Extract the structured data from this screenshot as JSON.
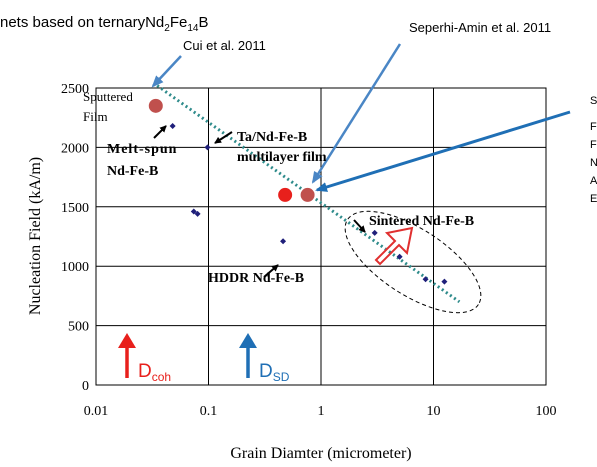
{
  "page": {
    "header_fragment": "nets based on ternary",
    "header_formula": {
      "base": "Nd",
      "s1": "2",
      "m": "Fe",
      "s2": "14",
      "tail": "B"
    },
    "right_clipped_lines": [
      "S",
      "F",
      "F",
      "N",
      "A",
      "E"
    ]
  },
  "chart_data": {
    "type": "scatter",
    "title": "",
    "xlabel": "Grain Diamter (micrometer)",
    "ylabel": "Nucleation Field (kA/m)",
    "x_scale": "log",
    "xlim": [
      0.01,
      100
    ],
    "ylim": [
      0,
      2500
    ],
    "x_ticks": [
      {
        "value": 0.01,
        "label": "0.01"
      },
      {
        "value": 0.1,
        "label": "0.1"
      },
      {
        "value": 1,
        "label": "1"
      },
      {
        "value": 10,
        "label": "10"
      },
      {
        "value": 100,
        "label": "100"
      }
    ],
    "y_ticks": [
      {
        "value": 0,
        "label": "0"
      },
      {
        "value": 500,
        "label": "500"
      },
      {
        "value": 1000,
        "label": "1000"
      },
      {
        "value": 1500,
        "label": "1500"
      },
      {
        "value": 2000,
        "label": "2000"
      },
      {
        "value": 2500,
        "label": "2500"
      }
    ],
    "grid": true,
    "colors": {
      "diamond": "#1f1f7a",
      "large_marker": "#c0504d",
      "bright_marker": "#e8201c",
      "dashed_line": "#2e8b8b",
      "blue_arrow": "#1f6fb5",
      "callout_arrow": "#4a86c5",
      "red_outline": "#e03030"
    },
    "series": [
      {
        "marker": "small-diamond",
        "points": [
          {
            "x": 0.048,
            "y": 2180
          },
          {
            "x": 0.098,
            "y": 2000
          },
          {
            "x": 0.074,
            "y": 1460
          },
          {
            "x": 0.08,
            "y": 1440
          },
          {
            "x": 0.46,
            "y": 1210
          },
          {
            "x": 3.0,
            "y": 1280
          },
          {
            "x": 5.0,
            "y": 1080
          },
          {
            "x": 8.5,
            "y": 890
          },
          {
            "x": 12.5,
            "y": 870
          }
        ]
      },
      {
        "marker": "large-circle",
        "points": [
          {
            "x": 0.034,
            "y": 2350,
            "color": "#c0504d"
          },
          {
            "x": 0.48,
            "y": 1600,
            "color": "#e8201c"
          },
          {
            "x": 0.76,
            "y": 1600,
            "color": "#c0504d"
          }
        ]
      }
    ],
    "trend_line": {
      "from": {
        "x": 0.035,
        "y": 2520
      },
      "to": {
        "x": 17,
        "y": 700
      }
    },
    "annotations": [
      {
        "key": "sputtered_1",
        "text": "Sputtered"
      },
      {
        "key": "sputtered_2",
        "text": "Film"
      },
      {
        "key": "meltspun_1",
        "text": "Melt-spun"
      },
      {
        "key": "meltspun_2",
        "text": "Nd-Fe-B"
      },
      {
        "key": "tandfeb_1",
        "text": "Ta/Nd-Fe-B"
      },
      {
        "key": "tandfeb_2",
        "text": "multilayer film"
      },
      {
        "key": "hddr",
        "text": "HDDR Nd-Fe-B"
      },
      {
        "key": "sintered",
        "text": "Sintered Nd-Fe-B"
      }
    ],
    "citations": [
      {
        "key": "cui",
        "text": "Cui et al. 2011"
      },
      {
        "key": "seperhi",
        "text": "Seperhi-Amin et al. 2011"
      }
    ],
    "arrow_labels": [
      {
        "key": "dcoh",
        "base": "D",
        "sub": "coh",
        "color": "#e8201c"
      },
      {
        "key": "dsd",
        "base": "D",
        "sub": "SD",
        "color": "#1f6fb5"
      }
    ]
  }
}
